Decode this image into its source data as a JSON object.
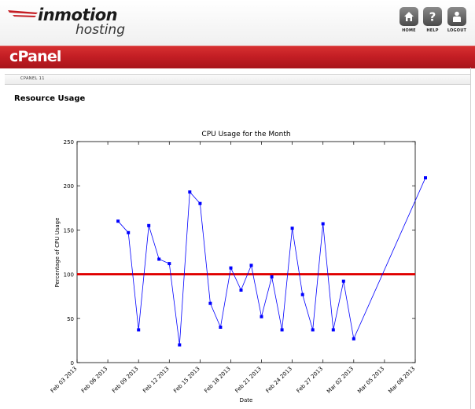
{
  "header": {
    "brand": "inmotion",
    "brand_sub": "hosting",
    "nav": [
      {
        "label": "HOME",
        "icon": "home-icon"
      },
      {
        "label": "HELP",
        "icon": "help-icon"
      },
      {
        "label": "LOGOUT",
        "icon": "logout-icon"
      }
    ]
  },
  "brand_bar": {
    "title": "cPanel"
  },
  "breadcrumb": {
    "text": "CPANEL 11"
  },
  "page": {
    "title": "Resource Usage"
  },
  "colors": {
    "brand_red": "#c41e24",
    "series": "#0000ff",
    "threshold": "#e00000"
  },
  "chart_data": {
    "type": "line",
    "title": "CPU Usage for the Month",
    "xlabel": "Date",
    "ylabel": "Percentage of CPU Usage",
    "ylim": [
      0,
      250
    ],
    "yticks": [
      0,
      50,
      100,
      150,
      200,
      250
    ],
    "xlim": [
      "2013-02-03",
      "2013-03-08"
    ],
    "xticks": [
      "Feb 03 2013",
      "Feb 06 2013",
      "Feb 09 2013",
      "Feb 12 2013",
      "Feb 15 2013",
      "Feb 18 2013",
      "Feb 21 2013",
      "Feb 24 2013",
      "Feb 27 2013",
      "Mar 02 2013",
      "Mar 05 2013",
      "Mar 08 2013"
    ],
    "threshold": 100,
    "grid": false,
    "series": [
      {
        "x": [
          "2013-02-07",
          "2013-02-08",
          "2013-02-09",
          "2013-02-10",
          "2013-02-11",
          "2013-02-12",
          "2013-02-13",
          "2013-02-14",
          "2013-02-15",
          "2013-02-16",
          "2013-02-17",
          "2013-02-18",
          "2013-02-19",
          "2013-02-20",
          "2013-02-21",
          "2013-02-22",
          "2013-02-23",
          "2013-02-24",
          "2013-02-25",
          "2013-02-26",
          "2013-02-27",
          "2013-02-28",
          "2013-03-01",
          "2013-03-02",
          "2013-03-09"
        ],
        "values": [
          160,
          147,
          37,
          155,
          117,
          112,
          20,
          193,
          180,
          67,
          40,
          107,
          82,
          110,
          52,
          97,
          37,
          152,
          77,
          37,
          157,
          37,
          92,
          27,
          209
        ]
      }
    ]
  }
}
